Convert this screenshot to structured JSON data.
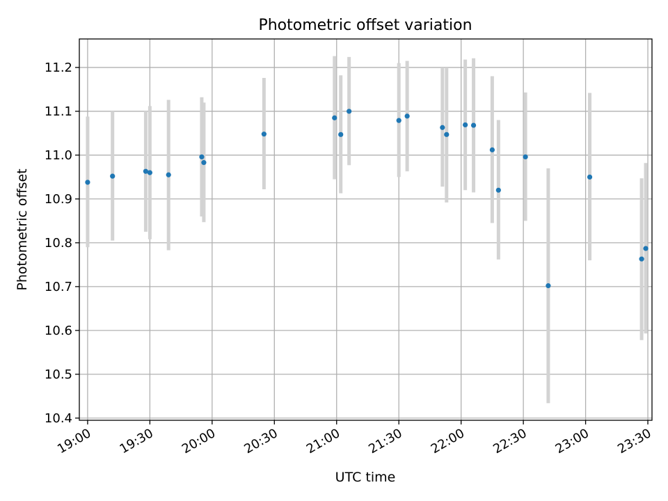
{
  "chart_data": {
    "type": "scatter",
    "title": "Photometric offset variation",
    "xlabel": "UTC time",
    "ylabel": "Photometric offset",
    "x_ticks": [
      "19:00",
      "19:30",
      "20:00",
      "20:30",
      "21:00",
      "21:30",
      "22:00",
      "22:30",
      "23:00",
      "23:30"
    ],
    "y_ticks": [
      "10.4",
      "10.5",
      "10.6",
      "10.7",
      "10.8",
      "10.9",
      "11.0",
      "11.1",
      "11.2"
    ],
    "xlim": [
      "18:56",
      "23:32"
    ],
    "ylim": [
      10.395,
      11.265
    ],
    "grid": true,
    "point_color": "#1f77b4",
    "errorbar_color": "#d3d3d3",
    "points": [
      {
        "x": "19:00",
        "y": 10.938,
        "ylow": 10.79,
        "yhigh": 11.088
      },
      {
        "x": "19:12",
        "y": 10.952,
        "ylow": 10.805,
        "yhigh": 11.1
      },
      {
        "x": "19:28",
        "y": 10.963,
        "ylow": 10.825,
        "yhigh": 11.1
      },
      {
        "x": "19:30",
        "y": 10.96,
        "ylow": 10.808,
        "yhigh": 11.112
      },
      {
        "x": "19:39",
        "y": 10.955,
        "ylow": 10.783,
        "yhigh": 11.126
      },
      {
        "x": "19:55",
        "y": 10.996,
        "ylow": 10.86,
        "yhigh": 11.132
      },
      {
        "x": "19:56",
        "y": 10.983,
        "ylow": 10.847,
        "yhigh": 11.12
      },
      {
        "x": "20:25",
        "y": 11.048,
        "ylow": 10.922,
        "yhigh": 11.176
      },
      {
        "x": "20:59",
        "y": 11.085,
        "ylow": 10.945,
        "yhigh": 11.226
      },
      {
        "x": "21:02",
        "y": 11.047,
        "ylow": 10.913,
        "yhigh": 11.182
      },
      {
        "x": "21:06",
        "y": 11.1,
        "ylow": 10.977,
        "yhigh": 11.224
      },
      {
        "x": "21:30",
        "y": 11.079,
        "ylow": 10.95,
        "yhigh": 11.21
      },
      {
        "x": "21:34",
        "y": 11.089,
        "ylow": 10.963,
        "yhigh": 11.215
      },
      {
        "x": "21:51",
        "y": 11.063,
        "ylow": 10.928,
        "yhigh": 11.2
      },
      {
        "x": "21:53",
        "y": 11.047,
        "ylow": 10.892,
        "yhigh": 11.2
      },
      {
        "x": "22:02",
        "y": 11.069,
        "ylow": 10.92,
        "yhigh": 11.218
      },
      {
        "x": "22:06",
        "y": 11.068,
        "ylow": 10.915,
        "yhigh": 11.221
      },
      {
        "x": "22:15",
        "y": 11.012,
        "ylow": 10.845,
        "yhigh": 11.18
      },
      {
        "x": "22:18",
        "y": 10.92,
        "ylow": 10.762,
        "yhigh": 11.08
      },
      {
        "x": "22:31",
        "y": 10.996,
        "ylow": 10.85,
        "yhigh": 11.143
      },
      {
        "x": "22:42",
        "y": 10.702,
        "ylow": 10.434,
        "yhigh": 10.97
      },
      {
        "x": "23:02",
        "y": 10.95,
        "ylow": 10.76,
        "yhigh": 11.142
      },
      {
        "x": "23:27",
        "y": 10.763,
        "ylow": 10.578,
        "yhigh": 10.947
      },
      {
        "x": "23:29",
        "y": 10.787,
        "ylow": 10.593,
        "yhigh": 10.982
      }
    ]
  }
}
